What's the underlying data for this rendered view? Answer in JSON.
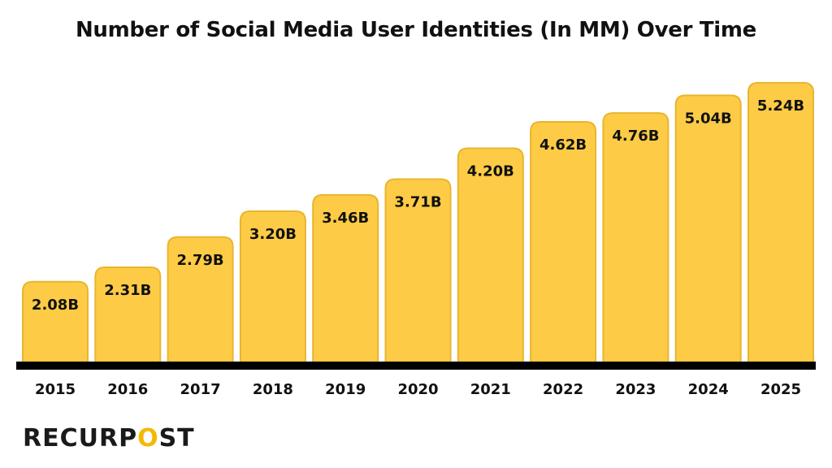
{
  "chart_data": {
    "type": "bar",
    "title": "Number of Social Media User Identities (In MM) Over Time",
    "categories": [
      "2015",
      "2016",
      "2017",
      "2018",
      "2019",
      "2020",
      "2021",
      "2022",
      "2023",
      "2024",
      "2025"
    ],
    "values": [
      2.08,
      2.31,
      2.79,
      3.2,
      3.46,
      3.71,
      4.2,
      4.62,
      4.76,
      5.04,
      5.24
    ],
    "data_labels": [
      "2.08B",
      "2.31B",
      "2.79B",
      "3.20B",
      "3.46B",
      "3.71B",
      "4.20B",
      "4.62B",
      "4.76B",
      "5.04B",
      "5.24B"
    ],
    "xlabel": "",
    "ylabel": "",
    "ylim": [
      0.8,
      5.5
    ],
    "grid": false,
    "colors": {
      "bar": "#fdcb45",
      "bar_edge": "#e9b52f",
      "baseline": "#000000",
      "text": "#111111"
    }
  },
  "brand": {
    "logo_text": "RECURPOST",
    "logo_accent": "#f5b800"
  }
}
